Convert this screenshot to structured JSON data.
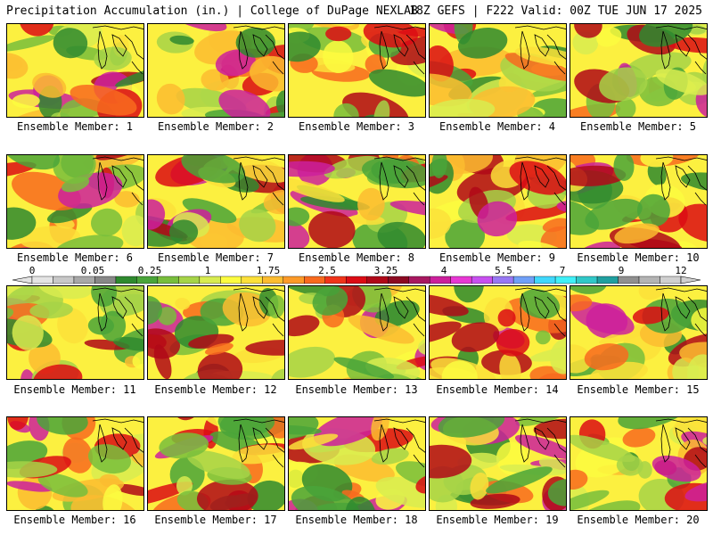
{
  "header": {
    "title": "Precipitation Accumulation (in.) | College of DuPage NEXLAB",
    "run_info": "18Z GEFS | F222 Valid: 00Z TUE JUN 17 2025"
  },
  "members": [
    {
      "label": "Ensemble Member: 1"
    },
    {
      "label": "Ensemble Member: 2"
    },
    {
      "label": "Ensemble Member: 3"
    },
    {
      "label": "Ensemble Member: 4"
    },
    {
      "label": "Ensemble Member: 5"
    },
    {
      "label": "Ensemble Member: 6"
    },
    {
      "label": "Ensemble Member: 7"
    },
    {
      "label": "Ensemble Member: 8"
    },
    {
      "label": "Ensemble Member: 9"
    },
    {
      "label": "Ensemble Member: 10"
    },
    {
      "label": "Ensemble Member: 11"
    },
    {
      "label": "Ensemble Member: 12"
    },
    {
      "label": "Ensemble Member: 13"
    },
    {
      "label": "Ensemble Member: 14"
    },
    {
      "label": "Ensemble Member: 15"
    },
    {
      "label": "Ensemble Member: 16"
    },
    {
      "label": "Ensemble Member: 17"
    },
    {
      "label": "Ensemble Member: 18"
    },
    {
      "label": "Ensemble Member: 19"
    },
    {
      "label": "Ensemble Member: 20"
    }
  ],
  "color_scale": {
    "labels": [
      "0",
      "0.05",
      "0.25",
      "1",
      "1.75",
      "2.5",
      "3.25",
      "4",
      "5.5",
      "7",
      "9",
      "12"
    ],
    "colors": [
      "#e4e4e4",
      "#c8c8c8",
      "#a8a8a8",
      "#888888",
      "#2f8a2f",
      "#4aa53a",
      "#78be3c",
      "#a6d448",
      "#d8ec50",
      "#fcfc40",
      "#fce03a",
      "#fcbc30",
      "#fc9a28",
      "#f86a1e",
      "#f0341a",
      "#dc0c14",
      "#b00818",
      "#8c0a22",
      "#a81860",
      "#cc209c",
      "#e838d4",
      "#c850f0",
      "#9878f4",
      "#70a0f8",
      "#40d8fc",
      "#40f0f8",
      "#30c8c8",
      "#20a0a0",
      "#909090",
      "#b4b4b4",
      "#d0d0d0"
    ]
  }
}
